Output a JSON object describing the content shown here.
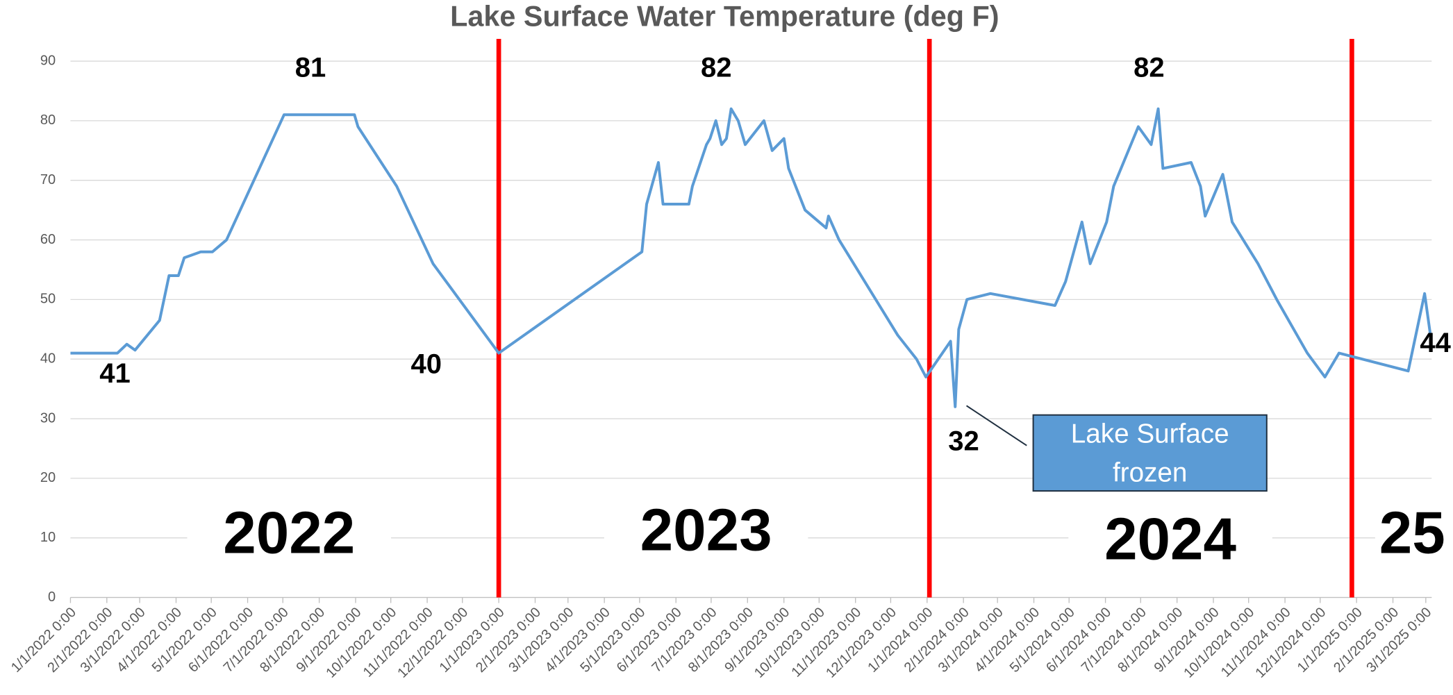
{
  "chart_data": {
    "type": "line",
    "title": "Lake Surface Water Temperature (deg F)",
    "color": "#5b9bd5",
    "x": [
      "1/1/2022",
      "2/10/2022",
      "2/18/2022",
      "2/25/2022",
      "3/18/2022",
      "3/26/2022",
      "4/3/2022",
      "4/8/2022",
      "4/22/2022",
      "5/2/2022",
      "5/14/2022",
      "7/2/2022",
      "8/31/2022",
      "9/3/2022",
      "10/6/2022",
      "11/6/2022",
      "1/1/2023",
      "5/3/2023",
      "5/7/2023",
      "5/17/2023",
      "5/21/2023",
      "6/12/2023",
      "6/15/2023",
      "6/27/2023",
      "6/30/2023",
      "7/5/2023",
      "7/10/2023",
      "7/14/2023",
      "7/18/2023",
      "7/24/2023",
      "7/30/2023",
      "8/15/2023",
      "8/22/2023",
      "9/1/2023",
      "9/5/2023",
      "9/19/2023",
      "10/7/2023",
      "10/9/2023",
      "10/18/2023",
      "12/7/2023",
      "12/23/2023",
      "12/31/2023",
      "1/21/2024",
      "1/25/2024",
      "1/28/2024",
      "2/4/2024",
      "2/24/2024",
      "4/19/2024",
      "4/28/2024",
      "5/12/2024",
      "5/19/2024",
      "6/2/2024",
      "6/8/2024",
      "6/29/2024",
      "7/10/2024",
      "7/16/2024",
      "7/20/2024",
      "8/13/2024",
      "8/21/2024",
      "8/25/2024",
      "9/9/2024",
      "9/17/2024",
      "10/9/2024",
      "10/25/2024",
      "11/20/2024",
      "12/5/2024",
      "12/17/2024",
      "2/14/2025",
      "2/28/2025",
      "3/5/2025"
    ],
    "values": [
      41,
      41,
      42.5,
      41.5,
      46.5,
      54,
      54,
      57,
      58,
      58,
      60,
      81,
      81,
      79,
      69,
      56,
      41,
      58,
      66,
      73,
      66,
      66,
      69,
      76,
      77,
      80,
      76,
      77,
      82,
      80,
      76,
      80,
      75,
      77,
      72,
      65,
      62,
      64,
      60,
      44,
      40,
      37,
      43,
      32,
      45,
      50,
      51,
      49,
      53,
      63,
      56,
      63,
      69,
      79,
      76,
      82,
      72,
      73,
      69,
      64,
      71,
      63,
      56,
      50,
      41,
      37,
      41,
      38,
      51,
      44
    ],
    "xlim": [
      "1/1/2022",
      "3/6/2025"
    ],
    "xticks": [
      "1/1/2022 0:00",
      "2/1/2022 0:00",
      "3/1/2022 0:00",
      "4/1/2022 0:00",
      "5/1/2022 0:00",
      "6/1/2022 0:00",
      "7/1/2022 0:00",
      "8/1/2022 0:00",
      "9/1/2022 0:00",
      "10/1/2022 0:00",
      "11/1/2022 0:00",
      "12/1/2022 0:00",
      "1/1/2023 0:00",
      "2/1/2023 0:00",
      "3/1/2023 0:00",
      "4/1/2023 0:00",
      "5/1/2023 0:00",
      "6/1/2023 0:00",
      "7/1/2023 0:00",
      "8/1/2023 0:00",
      "9/1/2023 0:00",
      "10/1/2023 0:00",
      "11/1/2023 0:00",
      "12/1/2023 0:00",
      "1/1/2024 0:00",
      "2/1/2024 0:00",
      "3/1/2024 0:00",
      "4/1/2024 0:00",
      "5/1/2024 0:00",
      "6/1/2024 0:00",
      "7/1/2024 0:00",
      "8/1/2024 0:00",
      "9/1/2024 0:00",
      "10/1/2024 0:00",
      "11/1/2024 0:00",
      "12/1/2024 0:00",
      "1/1/2025 0:00",
      "2/1/2025 0:00",
      "3/1/2025 0:00"
    ],
    "ylim": [
      0,
      90
    ],
    "yticks": [
      0,
      10,
      20,
      30,
      40,
      50,
      60,
      70,
      80,
      90
    ],
    "grid": true,
    "vlines": {
      "color": "#ff0000",
      "x": [
        "1/1/2023",
        "1/3/2024",
        "12/28/2024"
      ]
    },
    "annotations": [
      "81",
      "82",
      "82",
      "41",
      "40",
      "32",
      "44"
    ],
    "period_labels": [
      "2022",
      "2023",
      "2024",
      "25"
    ],
    "callout": [
      "Lake Surface",
      "frozen"
    ]
  }
}
